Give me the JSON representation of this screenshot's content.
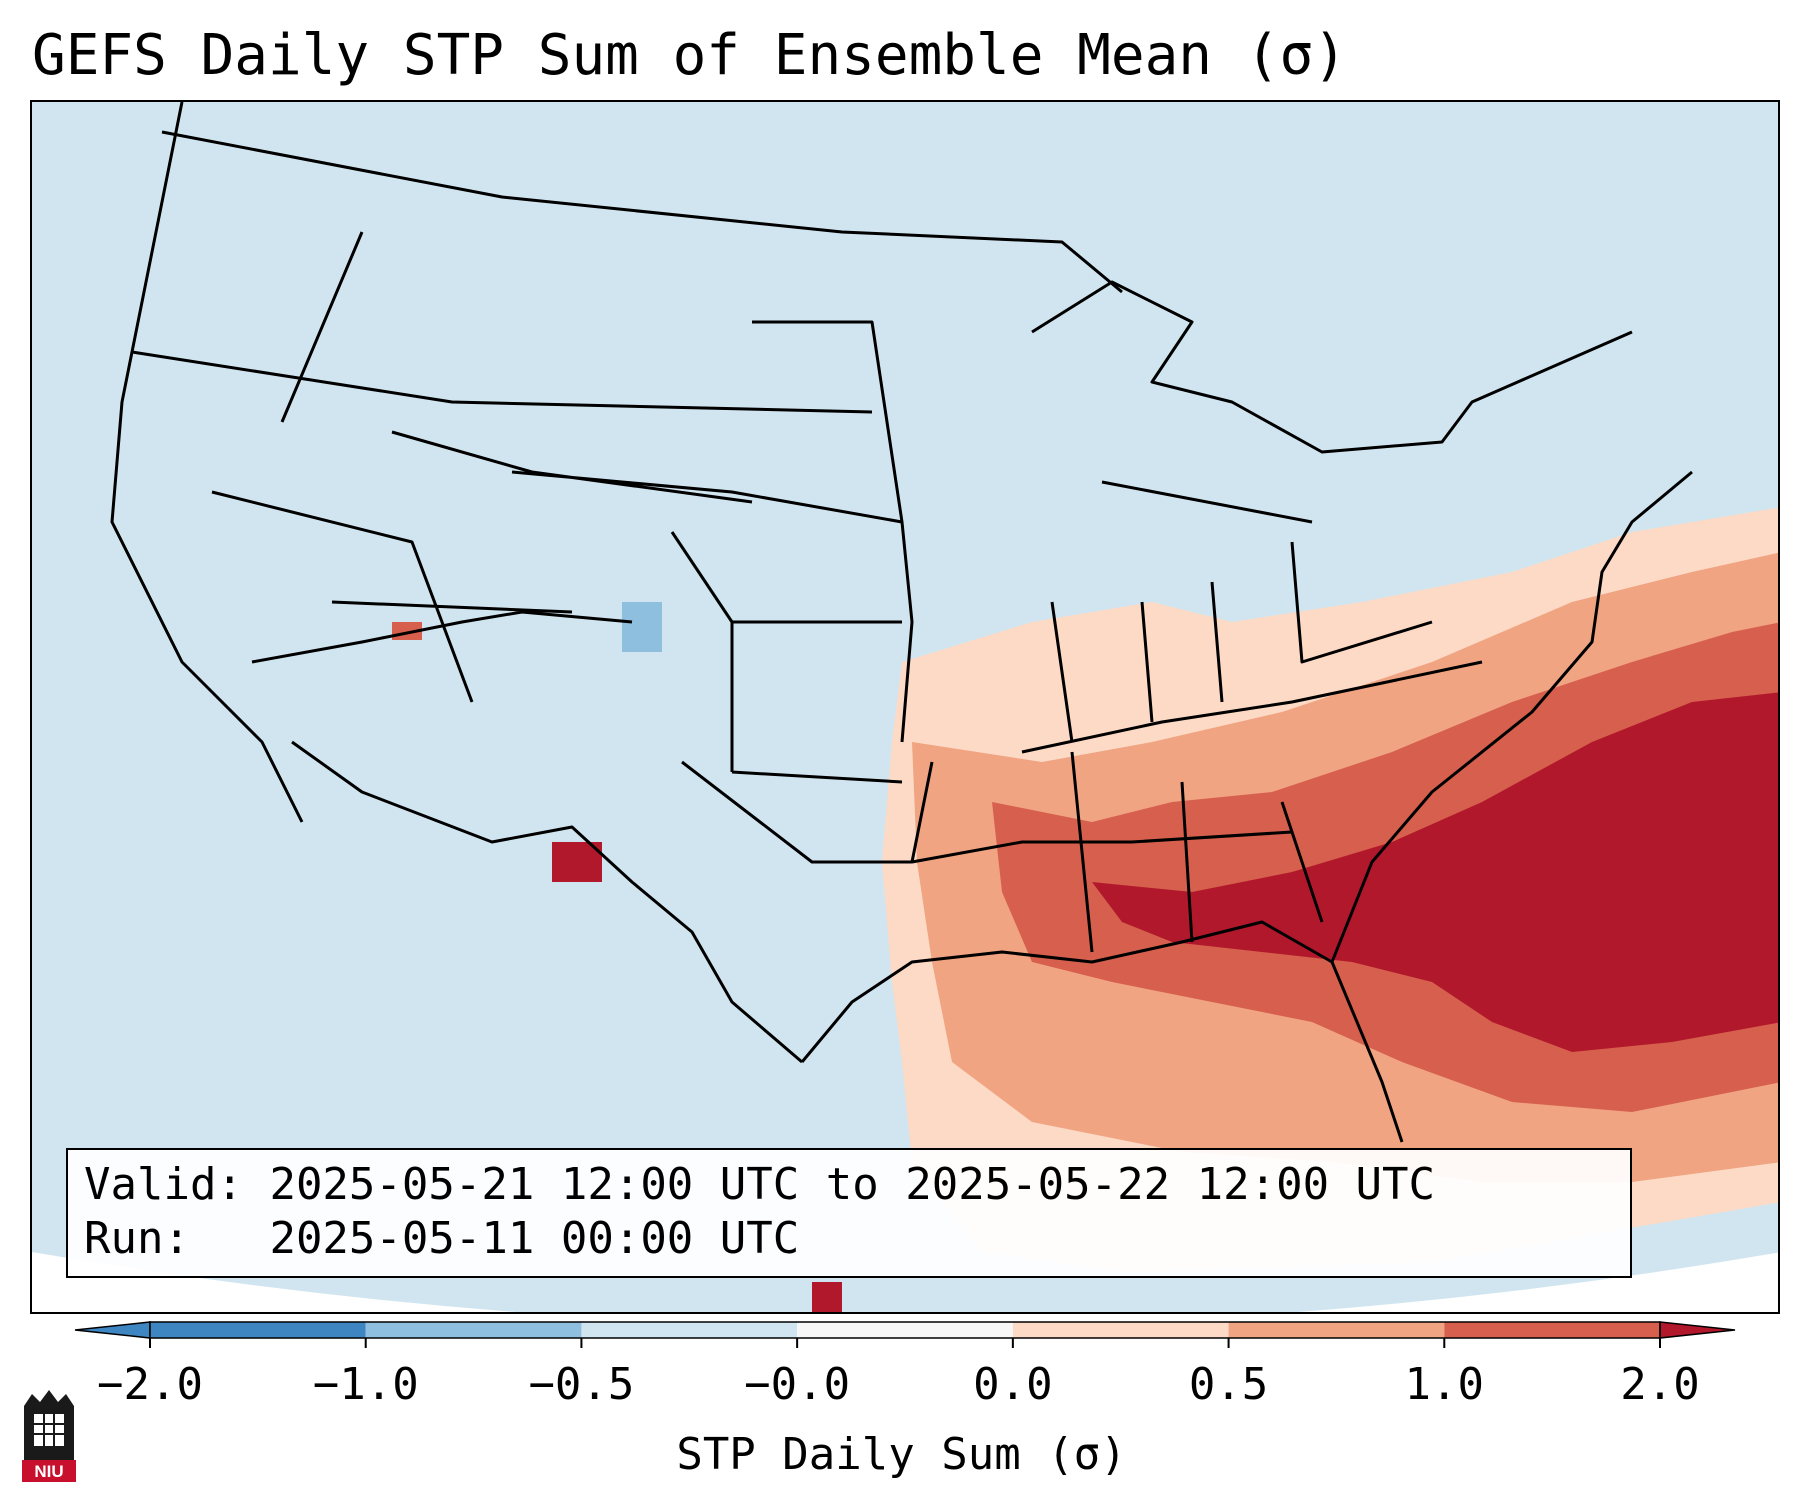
{
  "title": "GEFS Daily STP Sum of Ensemble Mean (σ)",
  "info": {
    "valid_label": "Valid:",
    "valid_value": "2025-05-21 12:00 UTC to 2025-05-22 12:00 UTC",
    "run_label": "Run:",
    "run_value": "2025-05-11 00:00 UTC"
  },
  "colorbar": {
    "label": "STP Daily Sum (σ)",
    "ticks": [
      "−2.0",
      "−1.0",
      "−0.5",
      "−0.0",
      "0.0",
      "0.5",
      "1.0",
      "2.0"
    ],
    "colors": [
      "#3d86c2",
      "#8ebfde",
      "#d1e5f0",
      "#f7f7f7",
      "#fcdac5",
      "#f0a482",
      "#d6604d",
      "#b2182b"
    ],
    "extend": "both"
  },
  "map": {
    "background_color": "#d1e5f0",
    "outline_color": "#000000",
    "region": "Continental United States"
  },
  "logo": {
    "text": "NIU"
  }
}
